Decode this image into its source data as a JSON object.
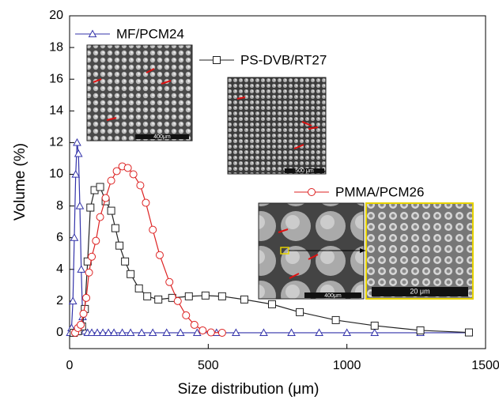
{
  "chart_data": {
    "type": "line",
    "xlabel": "Size distribution (μm)",
    "ylabel": "Volume (%)",
    "xlim": [
      0,
      1500
    ],
    "ylim": [
      -1,
      20
    ],
    "xticks": [
      0,
      500,
      1000,
      1500
    ],
    "yticks": [
      0,
      2,
      4,
      6,
      8,
      10,
      12,
      14,
      16,
      18,
      20
    ],
    "annotations": [
      "400μm",
      "500 μm",
      "400μm",
      "20 μm"
    ],
    "series": [
      {
        "name": "MF/PCM24",
        "color": "#3333aa",
        "marker": "triangle",
        "x": [
          2,
          7,
          12,
          17,
          22,
          27,
          32,
          37,
          42,
          47,
          55,
          65,
          80,
          100,
          120,
          140,
          160,
          190,
          220,
          260,
          300,
          350,
          400,
          460,
          530,
          600,
          700,
          800,
          900,
          1000,
          1100,
          1265,
          1440
        ],
        "values": [
          0,
          0.3,
          2,
          6,
          10,
          12,
          11.3,
          8,
          4,
          1,
          0.1,
          0,
          0,
          0,
          0,
          0,
          0,
          0,
          0,
          0,
          0,
          0,
          0,
          0,
          0,
          0,
          0,
          0,
          0,
          0,
          0,
          0,
          0
        ]
      },
      {
        "name": "PS-DVB/RT27",
        "color": "#222222",
        "marker": "square",
        "x": [
          15,
          30,
          45,
          55,
          65,
          75,
          90,
          110,
          130,
          150,
          165,
          180,
          200,
          220,
          250,
          280,
          320,
          370,
          430,
          490,
          550,
          630,
          730,
          830,
          960,
          1100,
          1265,
          1440
        ],
        "values": [
          0,
          0.1,
          0.4,
          1.5,
          4.5,
          7.9,
          9,
          9.2,
          8.3,
          7.7,
          6.6,
          5.5,
          4.5,
          3.7,
          2.8,
          2.3,
          2.1,
          2.2,
          2.3,
          2.35,
          2.3,
          2.1,
          1.8,
          1.3,
          0.8,
          0.45,
          0.15,
          0.02
        ]
      },
      {
        "name": "PMMA/PCM26",
        "color": "#dd2222",
        "marker": "circle",
        "x": [
          20,
          30,
          40,
          50,
          60,
          70,
          80,
          95,
          110,
          130,
          150,
          170,
          190,
          210,
          230,
          255,
          275,
          300,
          325,
          360,
          390,
          420,
          450,
          480,
          510,
          550
        ],
        "values": [
          0,
          0.3,
          0.5,
          1.2,
          2.2,
          3.8,
          4.8,
          5.8,
          7.3,
          8.5,
          9.6,
          10.2,
          10.5,
          10.4,
          10,
          9.3,
          8.2,
          6.5,
          4.9,
          3.2,
          2,
          1.1,
          0.5,
          0.15,
          0.02,
          0
        ]
      }
    ]
  }
}
